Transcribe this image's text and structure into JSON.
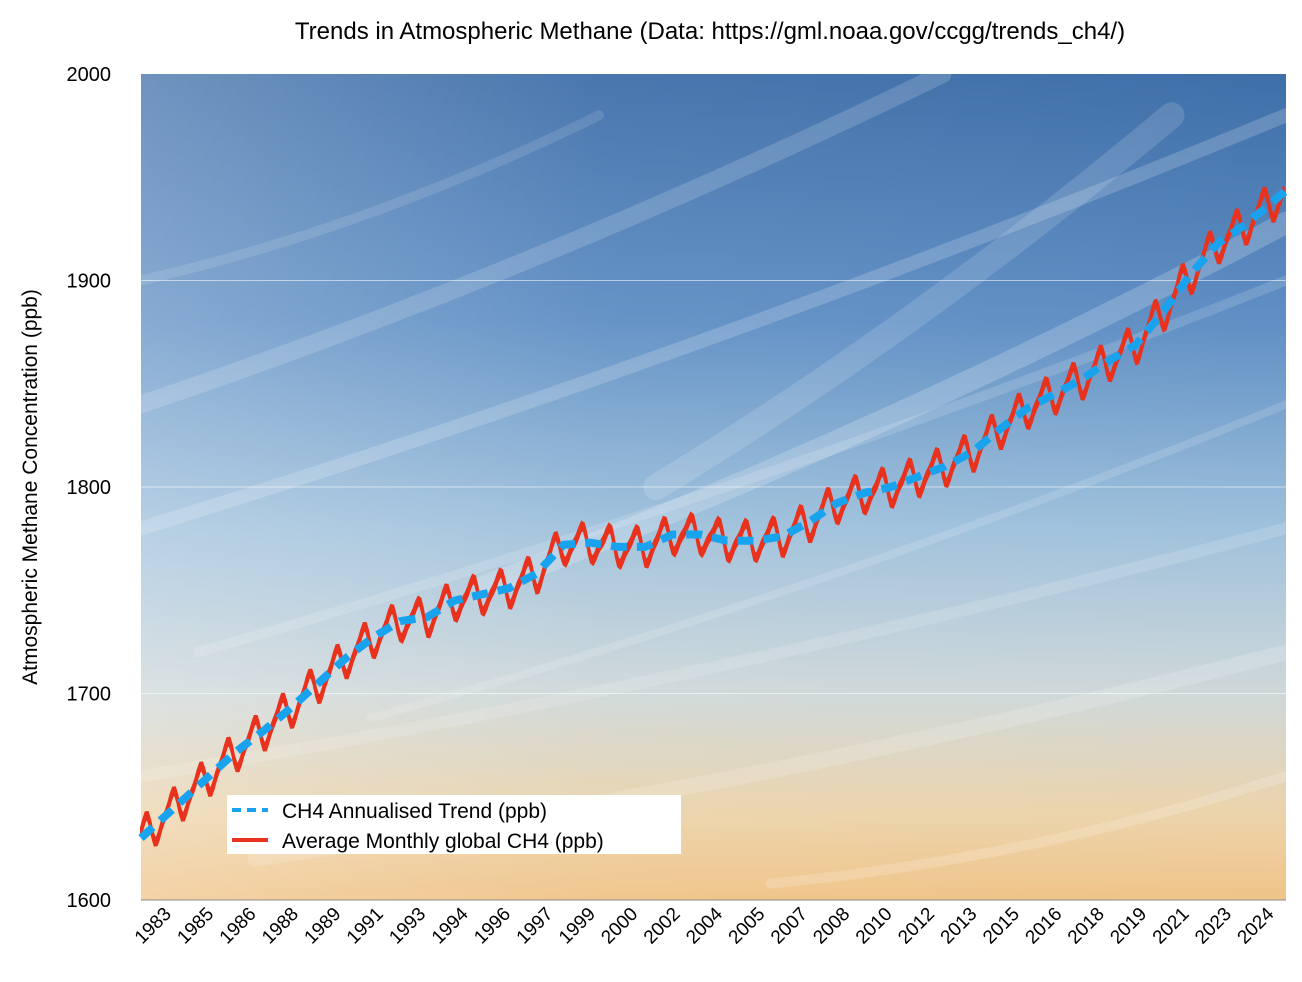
{
  "chart_data": {
    "type": "line",
    "title": "Trends in Atmospheric Methane (Data: https://gml.noaa.gov/ccgg/trends_ch4/)",
    "xlabel": "",
    "ylabel": "Atmospheric Methane Concentration (ppb)",
    "ylim": [
      1600,
      2000
    ],
    "yticks": [
      "1600",
      "1700",
      "1800",
      "1900",
      "2000"
    ],
    "xticks": [
      "1983",
      "1985",
      "1986",
      "1988",
      "1989",
      "1991",
      "1993",
      "1994",
      "1996",
      "1997",
      "1999",
      "2000",
      "2002",
      "2004",
      "2005",
      "2007",
      "2008",
      "2010",
      "2012",
      "2013",
      "2015",
      "2016",
      "2018",
      "2019",
      "2021",
      "2023",
      "2024"
    ],
    "grid": true,
    "legend_position": "bottom-left",
    "background": "sky photograph",
    "series": [
      {
        "name": "CH4 Annualised Trend (ppb)",
        "style": "dashed",
        "color": "#19a3ef",
        "x": [
          1983.5,
          1984.5,
          1985.5,
          1986.5,
          1987.5,
          1988.5,
          1989.5,
          1990.5,
          1991.5,
          1992.5,
          1993.5,
          1994.5,
          1995.5,
          1996.5,
          1997.5,
          1998.5,
          1999.5,
          2000.5,
          2001.5,
          2002.5,
          2003.5,
          2004.5,
          2005.5,
          2006.5,
          2007.5,
          2008.5,
          2009.5,
          2010.5,
          2011.5,
          2012.5,
          2013.5,
          2014.5,
          2015.5,
          2016.5,
          2017.5,
          2018.5,
          2019.5,
          2020.5,
          2021.5,
          2022.5,
          2023.5,
          2024.5
        ],
        "values": [
          1636,
          1648,
          1660,
          1672,
          1682,
          1693,
          1705,
          1717,
          1727,
          1735,
          1737,
          1745,
          1748,
          1751,
          1758,
          1772,
          1773,
          1771,
          1771,
          1777,
          1777,
          1774,
          1774,
          1776,
          1783,
          1792,
          1797,
          1800,
          1805,
          1810,
          1817,
          1828,
          1838,
          1845,
          1852,
          1861,
          1869,
          1885,
          1903,
          1918,
          1927,
          1938
        ]
      },
      {
        "name": "Average Monthly global CH4 (ppb)",
        "style": "solid",
        "color": "#e8321d",
        "seasonal_amplitude_ppb": 9
      }
    ]
  }
}
